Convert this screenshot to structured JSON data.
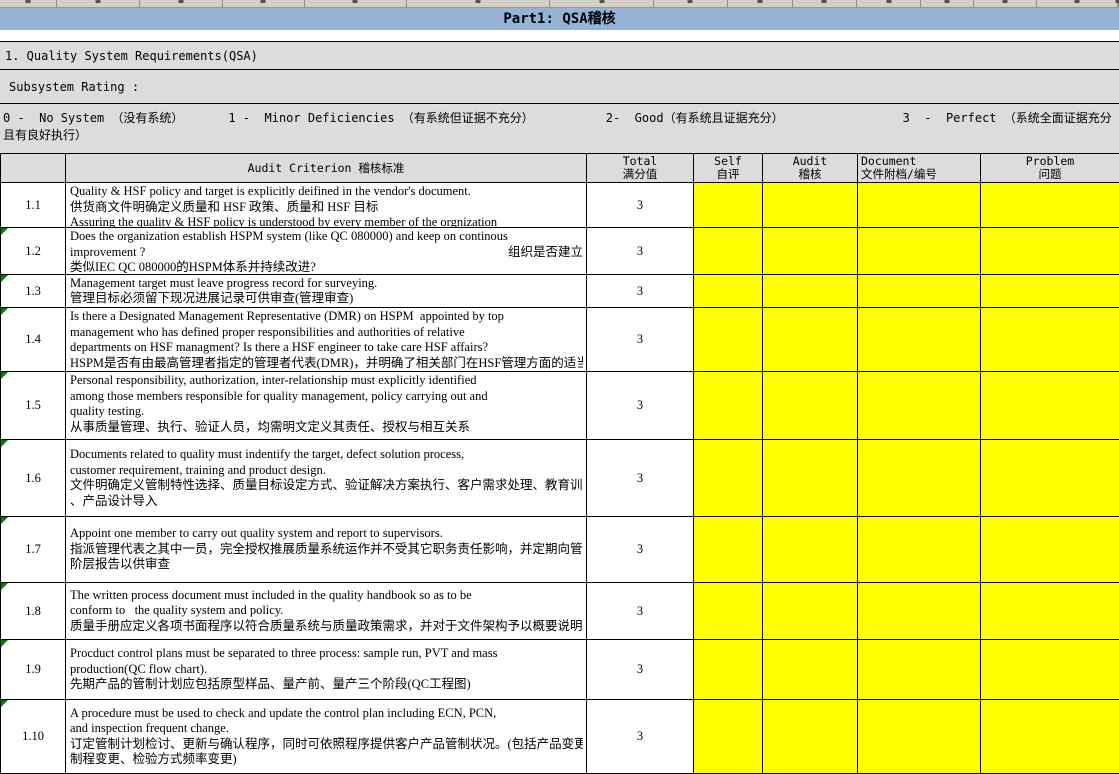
{
  "title": "Part1: QSA稽核",
  "section_header": "1. Quality System Requirements(QSA)",
  "subsystem_rating_label": "Subsystem Rating :",
  "rating_scale": [
    "0 -  No System （没有系统）",
    "1 -  Minor Deficiencies （有系统但证据不充分）",
    "2-  Good（有系统且证据充分）",
    "3  -  Perfect （系统全面证据充分且有良好执行）"
  ],
  "colors": {
    "title_bar_blue": "#95B3D7",
    "band_gray": "#DCDCDC",
    "strip_gray": "#D4D0C8",
    "cell_yellow": "#FFFF00",
    "comment_triangle_green": "#008000",
    "border_black": "#000000"
  },
  "table": {
    "headers": {
      "criterion": "Audit Criterion 稽核标准",
      "total": [
        "Total",
        "满分值"
      ],
      "self": [
        "Self",
        "自评"
      ],
      "audit": [
        "Audit",
        "稽核"
      ],
      "document": [
        "Document",
        "文件附档/编号"
      ],
      "problem": [
        "Problem",
        "问题"
      ]
    },
    "rows": [
      {
        "id": "1.1",
        "score": "3",
        "flag": false,
        "self": "",
        "audit": "",
        "document": "",
        "problem": "",
        "lines": [
          {
            "lang": "en",
            "text": "Quality & HSF policy and target is explicitly deifined in the vendor's document."
          },
          {
            "lang": "cn",
            "text": "供货商文件明确定义质量和 HSF 政策、质量和 HSF 目标"
          },
          {
            "lang": "en",
            "text": "Assuring the quality & HSF policy is understood by every member of the orgnization"
          }
        ]
      },
      {
        "id": "1.2",
        "score": "3",
        "flag": true,
        "self": "",
        "audit": "",
        "document": "",
        "problem": "",
        "lines": [
          {
            "lang": "en",
            "text": "Does the organization establish HSPM system (like QC 080000) and keep on continous"
          },
          {
            "lang": "en",
            "text": "improvement ?",
            "right": "组织是否建立"
          },
          {
            "lang": "cn",
            "text": "类似IEC QC 080000的HSPM体系并持续改进?"
          }
        ]
      },
      {
        "id": "1.3",
        "score": "3",
        "flag": true,
        "self": "",
        "audit": "",
        "document": "",
        "problem": "",
        "lines": [
          {
            "lang": "en",
            "text": "Management target must leave progress record for surveying."
          },
          {
            "lang": "cn",
            "text": "管理目标必须留下现况进展记录可供审查(管理审查)"
          }
        ]
      },
      {
        "id": "1.4",
        "score": "3",
        "flag": true,
        "self": "",
        "audit": "",
        "document": "",
        "problem": "",
        "lines": [
          {
            "lang": "en",
            "text": "Is there a Designated Management Representative (DMR) on HSPM  appointed by top"
          },
          {
            "lang": "en",
            "text": "management who has defined proper responsibilities and authorities of relative"
          },
          {
            "lang": "en",
            "text": "departments on HSF managment? Is there a HSF engineer to take care HSF affairs?"
          },
          {
            "lang": "cn",
            "text": "HSPM是否有由最高管理者指定的管理者代表(DMR)，并明确了相关部门在HSF管理方面的适当"
          }
        ]
      },
      {
        "id": "1.5",
        "score": "3",
        "flag": true,
        "self": "",
        "audit": "",
        "document": "",
        "problem": "",
        "lines": [
          {
            "lang": "en",
            "text": "Personal responsibility, authorization, inter-relationship must explicitly identified"
          },
          {
            "lang": "en",
            "text": "among those members responsible for quality management, policy carrying out and"
          },
          {
            "lang": "en",
            "text": "quality testing."
          },
          {
            "lang": "cn",
            "text": "从事质量管理、执行、验证人员，均需明文定义其责任、授权与相互关系"
          }
        ]
      },
      {
        "id": "1.6",
        "score": "3",
        "flag": true,
        "self": "",
        "audit": "",
        "document": "",
        "problem": "",
        "lines": [
          {
            "lang": "en",
            "text": "Documents related to quality must indentify the target, defect solution process,"
          },
          {
            "lang": "en",
            "text": "customer requirement, training and product design."
          },
          {
            "lang": "cn",
            "text": "文件明确定义管制特性选择、质量目标设定方式、验证解决方案执行、客户需求处理、教育训练"
          },
          {
            "lang": "cn",
            "text": "、产品设计导入"
          }
        ]
      },
      {
        "id": "1.7",
        "score": "3",
        "flag": true,
        "self": "",
        "audit": "",
        "document": "",
        "problem": "",
        "lines": [
          {
            "lang": "en",
            "text": "Appoint one member to carry out quality system and report to supervisors."
          },
          {
            "lang": "cn",
            "text": "指派管理代表之其中一员，完全授权推展质量系统运作并不受其它职务责任影响，并定期向管理"
          },
          {
            "lang": "cn",
            "text": "阶层报告以供审查"
          }
        ]
      },
      {
        "id": "1.8",
        "score": "3",
        "flag": true,
        "self": "",
        "audit": "",
        "document": "",
        "problem": "",
        "lines": [
          {
            "lang": "en",
            "text": "The written process document must included in the quality handbook so as to be"
          },
          {
            "lang": "en",
            "text": "conform to   the quality system and policy."
          },
          {
            "lang": "cn",
            "text": "质量手册应定义各项书面程序以符合质量系统与质量政策需求，并对于文件架构予以概要说明"
          }
        ]
      },
      {
        "id": "1.9",
        "score": "3",
        "flag": true,
        "self": "",
        "audit": "",
        "document": "",
        "problem": "",
        "lines": [
          {
            "lang": "en",
            "text": "Procduct control plans must be separated to three process: sample run, PVT and mass"
          },
          {
            "lang": "en",
            "text": "production(QC flow chart)."
          },
          {
            "lang": "cn",
            "text": "先期产品的管制计划应包括原型样品、量产前、量产三个阶段(QC工程图)"
          }
        ]
      },
      {
        "id": "1.10",
        "score": "3",
        "flag": true,
        "self": "",
        "audit": "",
        "document": "",
        "problem": "",
        "lines": [
          {
            "lang": "en",
            "text": "A procedure must be used to check and update the control plan including ECN, PCN,"
          },
          {
            "lang": "en",
            "text": "and inspection frequent change."
          },
          {
            "lang": "cn",
            "text": "订定管制计划检讨、更新与确认程序，同时可依照程序提供客户产品管制状况。(包括产品变更、"
          },
          {
            "lang": "cn",
            "text": "制程变更、检验方式频率变更)"
          }
        ]
      }
    ]
  }
}
